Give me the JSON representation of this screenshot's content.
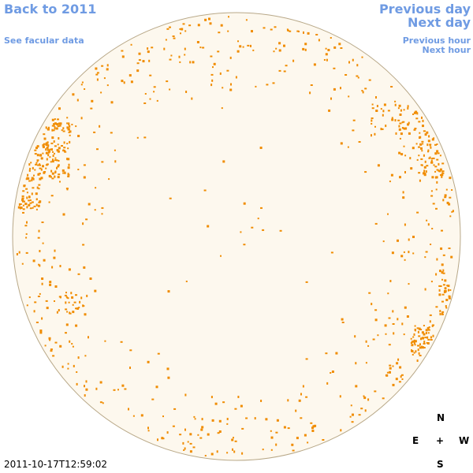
{
  "nav": {
    "back_label": "Back to 2011",
    "facular_label": "See facular data",
    "prev_day_label": "Previous day",
    "next_day_label": "Next day",
    "prev_hour_label": "Previous hour",
    "next_hour_label": "Next hour"
  },
  "compass": {
    "north": "N",
    "east": "E",
    "center": "+",
    "west": "W",
    "south": "S"
  },
  "timestamp": "2011-10-17T12:59:02",
  "colors": {
    "link": "#6f9be3",
    "disk_fill": "#fdf8ee",
    "disk_outline": "#b8a888",
    "marker": "#f08c00"
  }
}
